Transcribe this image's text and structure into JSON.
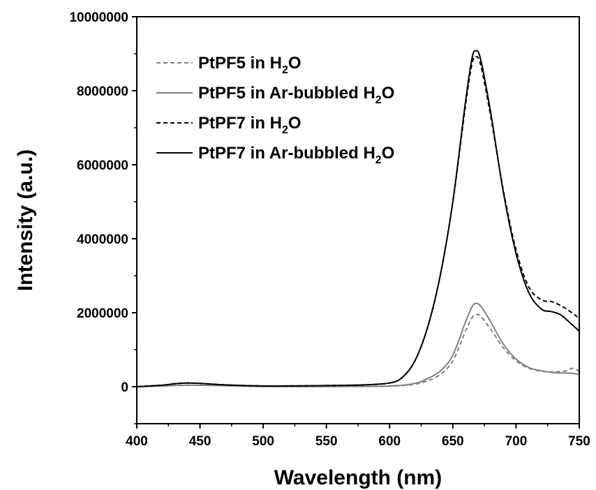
{
  "chart_data": {
    "type": "line",
    "title": "",
    "xlabel": "Wavelength (nm)",
    "ylabel": "Intensity (a.u.)",
    "xlim": [
      400,
      750
    ],
    "ylim": [
      -1000000,
      10000000
    ],
    "x_ticks": [
      400,
      450,
      500,
      550,
      600,
      650,
      700,
      750
    ],
    "y_ticks": [
      0,
      2000000,
      4000000,
      6000000,
      8000000,
      10000000
    ],
    "x_tick_labels": [
      "400",
      "450",
      "500",
      "550",
      "600",
      "650",
      "700",
      "750"
    ],
    "y_tick_labels": [
      "0",
      "2000000",
      "4000000",
      "6000000",
      "8000000",
      "10000000"
    ],
    "grid": false,
    "legend_position": "top-left",
    "series": [
      {
        "name": "PtPF5 in H2O",
        "legend": {
          "prefix": "PtPF5 in H",
          "sub": "2",
          "suffix": "O"
        },
        "color": "#808080",
        "dash": "dashed",
        "points": [
          [
            400,
            0
          ],
          [
            420,
            20000
          ],
          [
            440,
            40000
          ],
          [
            460,
            35000
          ],
          [
            500,
            5000
          ],
          [
            550,
            5000
          ],
          [
            600,
            15000
          ],
          [
            620,
            70000
          ],
          [
            630,
            160000
          ],
          [
            640,
            330000
          ],
          [
            650,
            700000
          ],
          [
            660,
            1500000
          ],
          [
            665,
            1850000
          ],
          [
            668,
            1950000
          ],
          [
            672,
            1900000
          ],
          [
            680,
            1550000
          ],
          [
            690,
            1050000
          ],
          [
            700,
            700000
          ],
          [
            710,
            500000
          ],
          [
            720,
            420000
          ],
          [
            730,
            400000
          ],
          [
            740,
            430000
          ],
          [
            745,
            500000
          ],
          [
            750,
            420000
          ]
        ]
      },
      {
        "name": "PtPF5 in Ar-bubbled H2O",
        "legend": {
          "prefix": "PtPF5 in Ar-bubbled H",
          "sub": "2",
          "suffix": "O"
        },
        "color": "#808080",
        "dash": "solid",
        "points": [
          [
            400,
            0
          ],
          [
            420,
            20000
          ],
          [
            440,
            40000
          ],
          [
            460,
            35000
          ],
          [
            500,
            5000
          ],
          [
            550,
            5000
          ],
          [
            600,
            20000
          ],
          [
            620,
            90000
          ],
          [
            630,
            220000
          ],
          [
            640,
            420000
          ],
          [
            650,
            850000
          ],
          [
            660,
            1750000
          ],
          [
            665,
            2150000
          ],
          [
            668,
            2250000
          ],
          [
            672,
            2180000
          ],
          [
            680,
            1750000
          ],
          [
            690,
            1150000
          ],
          [
            700,
            750000
          ],
          [
            710,
            520000
          ],
          [
            720,
            430000
          ],
          [
            730,
            380000
          ],
          [
            740,
            370000
          ],
          [
            745,
            360000
          ],
          [
            750,
            330000
          ]
        ]
      },
      {
        "name": "PtPF7 in H2O",
        "legend": {
          "prefix": "PtPF7 in H",
          "sub": "2",
          "suffix": "O"
        },
        "color": "#000000",
        "dash": "dashed",
        "points": [
          [
            400,
            0
          ],
          [
            420,
            40000
          ],
          [
            430,
            80000
          ],
          [
            440,
            100000
          ],
          [
            450,
            90000
          ],
          [
            470,
            50000
          ],
          [
            500,
            20000
          ],
          [
            550,
            30000
          ],
          [
            580,
            50000
          ],
          [
            600,
            100000
          ],
          [
            610,
            250000
          ],
          [
            620,
            700000
          ],
          [
            630,
            1600000
          ],
          [
            640,
            3000000
          ],
          [
            650,
            5000000
          ],
          [
            660,
            7600000
          ],
          [
            665,
            8700000
          ],
          [
            668,
            8920000
          ],
          [
            672,
            8700000
          ],
          [
            680,
            7300000
          ],
          [
            690,
            5300000
          ],
          [
            700,
            3700000
          ],
          [
            710,
            2700000
          ],
          [
            720,
            2350000
          ],
          [
            728,
            2300000
          ],
          [
            735,
            2200000
          ],
          [
            742,
            2050000
          ],
          [
            750,
            1850000
          ]
        ]
      },
      {
        "name": "PtPF7 in Ar-bubbled H2O",
        "legend": {
          "prefix": "PtPF7 in Ar-bubbled H",
          "sub": "2",
          "suffix": "O"
        },
        "color": "#000000",
        "dash": "solid",
        "points": [
          [
            400,
            0
          ],
          [
            420,
            40000
          ],
          [
            430,
            80000
          ],
          [
            440,
            100000
          ],
          [
            450,
            90000
          ],
          [
            470,
            50000
          ],
          [
            500,
            20000
          ],
          [
            550,
            30000
          ],
          [
            580,
            50000
          ],
          [
            600,
            100000
          ],
          [
            610,
            250000
          ],
          [
            620,
            700000
          ],
          [
            630,
            1600000
          ],
          [
            640,
            3000000
          ],
          [
            650,
            5000000
          ],
          [
            660,
            7700000
          ],
          [
            665,
            8850000
          ],
          [
            668,
            9080000
          ],
          [
            672,
            8850000
          ],
          [
            680,
            7400000
          ],
          [
            690,
            5250000
          ],
          [
            700,
            3600000
          ],
          [
            710,
            2550000
          ],
          [
            720,
            2100000
          ],
          [
            728,
            2030000
          ],
          [
            735,
            1950000
          ],
          [
            742,
            1750000
          ],
          [
            750,
            1500000
          ]
        ]
      }
    ]
  }
}
